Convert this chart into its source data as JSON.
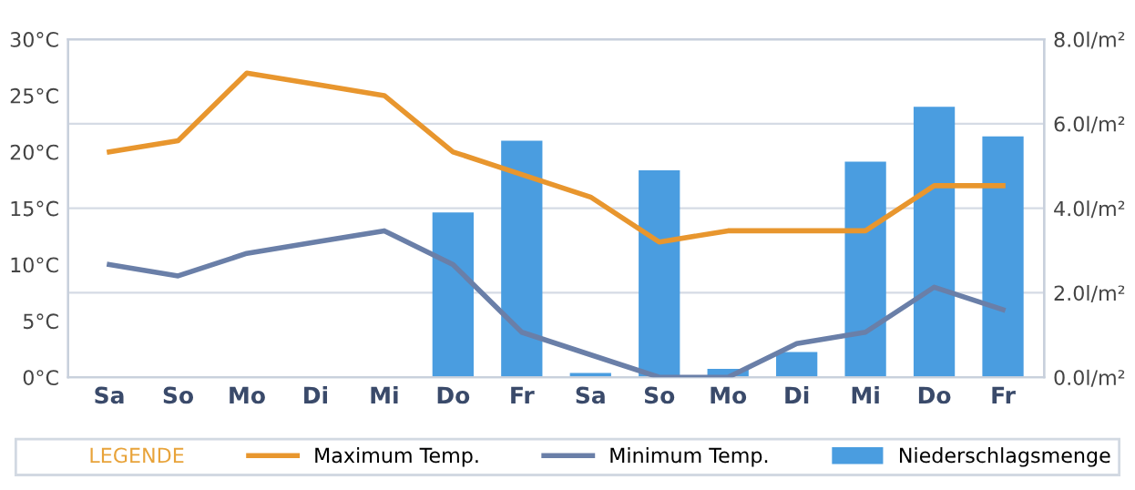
{
  "chart_data": {
    "type": "bar",
    "categories": [
      "Sa",
      "So",
      "Mo",
      "Di",
      "Mi",
      "Do",
      "Fr",
      "Sa",
      "So",
      "Mo",
      "Di",
      "Mi",
      "Do",
      "Fr"
    ],
    "series": [
      {
        "name": "Maximum Temp.",
        "type": "line",
        "color": "#e8962e",
        "values": [
          20,
          21,
          27,
          26,
          25,
          20,
          18,
          16,
          12,
          13,
          13,
          13,
          17,
          17
        ]
      },
      {
        "name": "Minimum Temp.",
        "type": "line",
        "color": "#6a7fa8",
        "values": [
          10,
          9,
          11,
          12,
          13,
          10,
          4,
          2,
          0,
          0,
          3,
          4,
          8,
          6
        ]
      },
      {
        "name": "Niederschlagsmenge",
        "axis": "y2",
        "color": "#4a9de0",
        "values": [
          0,
          0,
          0,
          0,
          0,
          3.9,
          5.6,
          0.1,
          4.9,
          0.2,
          0.6,
          5.1,
          6.4,
          5.7
        ]
      }
    ],
    "ylim": [
      0,
      30
    ],
    "yticks": [
      {
        "value": 0,
        "label": "0°C"
      },
      {
        "value": 5,
        "label": "5°C"
      },
      {
        "value": 10,
        "label": "10°C"
      },
      {
        "value": 15,
        "label": "15°C"
      },
      {
        "value": 20,
        "label": "20°C"
      },
      {
        "value": 25,
        "label": "25°C"
      },
      {
        "value": 30,
        "label": "30°C"
      }
    ],
    "y2lim": [
      0,
      8
    ],
    "y2ticks": [
      {
        "value": 0,
        "label": "0.0l/m²"
      },
      {
        "value": 2,
        "label": "2.0l/m²"
      },
      {
        "value": 4,
        "label": "4.0l/m²"
      },
      {
        "value": 6,
        "label": "6.0l/m²"
      },
      {
        "value": 8,
        "label": "8.0l/m²"
      }
    ],
    "grid": "y2",
    "legend": "bottom",
    "legend_title": "LEGENDE",
    "marker": "none",
    "line_style": "solid"
  }
}
